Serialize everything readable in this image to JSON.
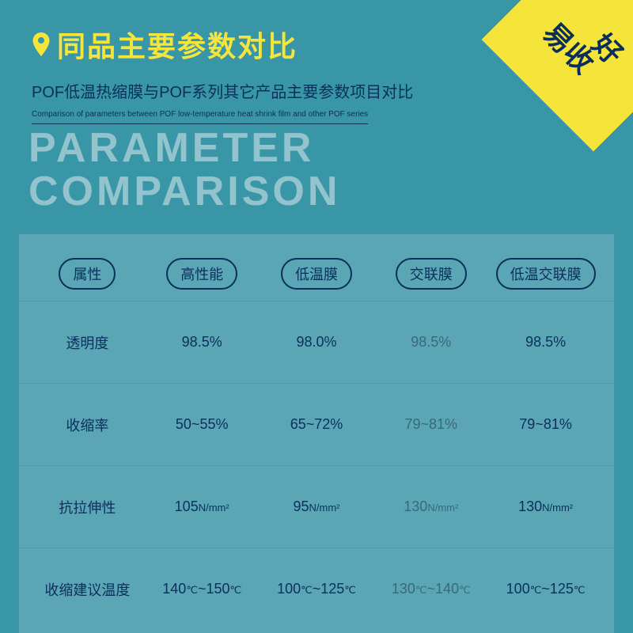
{
  "header": {
    "title": "同品主要参数对比",
    "subtitle": "POF低温热缩膜与POF系列其它产品主要参数项目对比",
    "subtitle_en": "Comparison of parameters between POF low-temperature heat shrink film and other POF series"
  },
  "corner": {
    "line1": "好",
    "line2": "易收"
  },
  "watermark": {
    "line1": "PARAMETER",
    "line2": "COMPARISON"
  },
  "table": {
    "type": "table",
    "columns": [
      "属性",
      "高性能",
      "低温膜",
      "交联膜",
      "低温交联膜"
    ],
    "highlight_column_index": 3,
    "header_pill_border": "#0b2f5c",
    "text_color": "#0b2f5c",
    "panel_bg": "#5aa6b4",
    "page_bg": "#3996a7",
    "rows": [
      {
        "label": "透明度",
        "cells": [
          "98.5%",
          "98.0%",
          "98.5%",
          "98.5%"
        ]
      },
      {
        "label": "收缩率",
        "cells": [
          "50~55%",
          "65~72%",
          "79~81%",
          "79~81%"
        ]
      },
      {
        "label": "抗拉伸性",
        "cells": [
          "105N/mm²",
          "95N/mm²",
          "130N/mm²",
          "130N/mm²"
        ]
      },
      {
        "label": "收缩建议温度",
        "cells": [
          "140℃~150℃",
          "100℃~125℃",
          "130℃~140℃",
          "100℃~125℃"
        ]
      }
    ]
  },
  "colors": {
    "accent_yellow": "#f5e53b",
    "deep_blue": "#0b2f5c"
  }
}
